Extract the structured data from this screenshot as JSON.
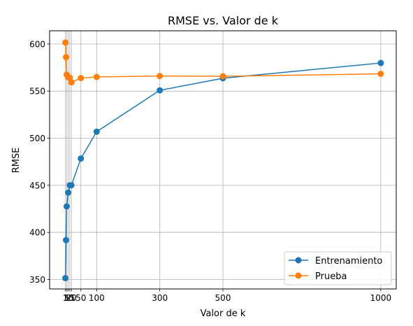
{
  "chart_data": {
    "type": "line",
    "title": "RMSE vs. Valor de k",
    "xlabel": "Valor de k",
    "ylabel": "RMSE",
    "xlim": [
      -49,
      1049
    ],
    "ylim": [
      340,
      614
    ],
    "xticks": [
      1,
      5,
      10,
      15,
      20,
      50,
      100,
      300,
      500,
      1000
    ],
    "yticks": [
      350,
      400,
      450,
      500,
      550,
      600
    ],
    "grid": true,
    "legend": "bottom-right",
    "x": [
      1,
      3,
      5,
      10,
      15,
      20,
      50,
      100,
      300,
      500,
      1000
    ],
    "series": [
      {
        "name": "Entrenamiento",
        "color": "#1f77b4",
        "values": [
          351.5,
          391.8,
          427.6,
          442.2,
          450.0,
          450.0,
          478.4,
          506.9,
          550.8,
          563.6,
          579.8
        ]
      },
      {
        "name": "Prueba",
        "color": "#ff7f0e",
        "values": [
          601.5,
          586.0,
          567.5,
          564.5,
          564.2,
          559.2,
          563.8,
          565.0,
          566.0,
          565.7,
          568.3
        ]
      }
    ]
  }
}
